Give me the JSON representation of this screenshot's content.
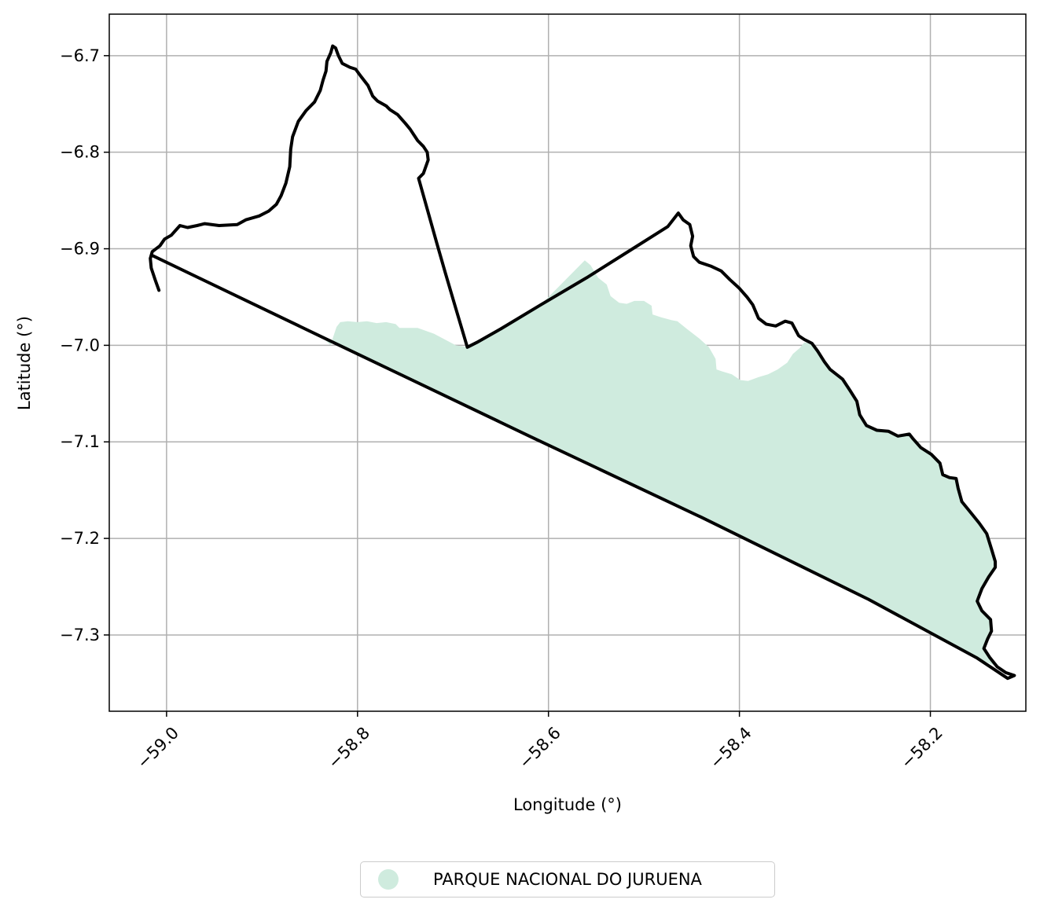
{
  "chart_data": {
    "type": "map",
    "xlabel": "Longitude (°)",
    "ylabel": "Latitude (°)",
    "xlim": [
      -59.06,
      -58.1
    ],
    "ylim": [
      -7.379,
      -6.657
    ],
    "grid": true,
    "legend_position": "bottom-center",
    "x_ticks": [
      {
        "value": -59.0,
        "label": "−59.0"
      },
      {
        "value": -58.8,
        "label": "−58.8"
      },
      {
        "value": -58.6,
        "label": "−58.6"
      },
      {
        "value": -58.4,
        "label": "−58.4"
      },
      {
        "value": -58.2,
        "label": "−58.2"
      }
    ],
    "y_ticks": [
      {
        "value": -6.7,
        "label": "−6.7"
      },
      {
        "value": -6.8,
        "label": "−6.8"
      },
      {
        "value": -6.9,
        "label": "−6.9"
      },
      {
        "value": -7.0,
        "label": "−7.0"
      },
      {
        "value": -7.1,
        "label": "−7.1"
      },
      {
        "value": -7.2,
        "label": "−7.2"
      },
      {
        "value": -7.3,
        "label": "−7.3"
      }
    ],
    "boundary": {
      "color": "#000000",
      "points": [
        [
          -59.008,
          -6.943
        ],
        [
          -59.012,
          -6.932
        ],
        [
          -59.016,
          -6.92
        ],
        [
          -59.017,
          -6.91
        ],
        [
          -59.015,
          -6.903
        ],
        [
          -59.007,
          -6.897
        ],
        [
          -59.002,
          -6.89
        ],
        [
          -58.995,
          -6.886
        ],
        [
          -58.986,
          -6.876
        ],
        [
          -58.978,
          -6.878
        ],
        [
          -58.968,
          -6.876
        ],
        [
          -58.96,
          -6.874
        ],
        [
          -58.945,
          -6.876
        ],
        [
          -58.926,
          -6.875
        ],
        [
          -58.917,
          -6.87
        ],
        [
          -58.903,
          -6.866
        ],
        [
          -58.893,
          -6.861
        ],
        [
          -58.885,
          -6.854
        ],
        [
          -58.88,
          -6.845
        ],
        [
          -58.875,
          -6.832
        ],
        [
          -58.871,
          -6.815
        ],
        [
          -58.87,
          -6.797
        ],
        [
          -58.868,
          -6.784
        ],
        [
          -58.862,
          -6.768
        ],
        [
          -58.854,
          -6.757
        ],
        [
          -58.845,
          -6.748
        ],
        [
          -58.839,
          -6.736
        ],
        [
          -58.836,
          -6.725
        ],
        [
          -58.833,
          -6.716
        ],
        [
          -58.832,
          -6.706
        ],
        [
          -58.828,
          -6.697
        ],
        [
          -58.826,
          -6.69
        ],
        [
          -58.823,
          -6.692
        ],
        [
          -58.82,
          -6.7
        ],
        [
          -58.816,
          -6.708
        ],
        [
          -58.808,
          -6.712
        ],
        [
          -58.802,
          -6.714
        ],
        [
          -58.796,
          -6.722
        ],
        [
          -58.789,
          -6.731
        ],
        [
          -58.784,
          -6.742
        ],
        [
          -58.779,
          -6.747
        ],
        [
          -58.77,
          -6.752
        ],
        [
          -58.766,
          -6.756
        ],
        [
          -58.758,
          -6.761
        ],
        [
          -58.75,
          -6.77
        ],
        [
          -58.745,
          -6.776
        ],
        [
          -58.741,
          -6.782
        ],
        [
          -58.737,
          -6.788
        ],
        [
          -58.731,
          -6.794
        ],
        [
          -58.727,
          -6.8
        ],
        [
          -58.726,
          -6.808
        ],
        [
          -58.731,
          -6.822
        ],
        [
          -58.736,
          -6.827
        ],
        [
          -58.717,
          -6.894
        ],
        [
          -58.708,
          -6.925
        ],
        [
          -58.697,
          -6.962
        ],
        [
          -58.685,
          -7.002
        ],
        [
          -58.675,
          -6.997
        ],
        [
          -58.65,
          -6.983
        ],
        [
          -58.608,
          -6.958
        ],
        [
          -58.56,
          -6.93
        ],
        [
          -58.515,
          -6.902
        ],
        [
          -58.475,
          -6.877
        ],
        [
          -58.464,
          -6.863
        ],
        [
          -58.459,
          -6.87
        ],
        [
          -58.452,
          -6.875
        ],
        [
          -58.449,
          -6.887
        ],
        [
          -58.451,
          -6.897
        ],
        [
          -58.448,
          -6.908
        ],
        [
          -58.442,
          -6.914
        ],
        [
          -58.43,
          -6.918
        ],
        [
          -58.419,
          -6.923
        ],
        [
          -58.41,
          -6.932
        ],
        [
          -58.4,
          -6.941
        ],
        [
          -58.392,
          -6.95
        ],
        [
          -58.386,
          -6.958
        ],
        [
          -58.38,
          -6.972
        ],
        [
          -58.372,
          -6.978
        ],
        [
          -58.362,
          -6.98
        ],
        [
          -58.352,
          -6.975
        ],
        [
          -58.345,
          -6.977
        ],
        [
          -58.338,
          -6.99
        ],
        [
          -58.332,
          -6.994
        ],
        [
          -58.324,
          -6.998
        ],
        [
          -58.318,
          -7.006
        ],
        [
          -58.311,
          -7.017
        ],
        [
          -58.305,
          -7.025
        ],
        [
          -58.292,
          -7.035
        ],
        [
          -58.284,
          -7.047
        ],
        [
          -58.277,
          -7.058
        ],
        [
          -58.274,
          -7.072
        ],
        [
          -58.267,
          -7.083
        ],
        [
          -58.256,
          -7.088
        ],
        [
          -58.244,
          -7.089
        ],
        [
          -58.234,
          -7.094
        ],
        [
          -58.222,
          -7.092
        ],
        [
          -58.218,
          -7.097
        ],
        [
          -58.21,
          -7.106
        ],
        [
          -58.199,
          -7.113
        ],
        [
          -58.19,
          -7.122
        ],
        [
          -58.187,
          -7.134
        ],
        [
          -58.18,
          -7.137
        ],
        [
          -58.173,
          -7.138
        ],
        [
          -58.171,
          -7.148
        ],
        [
          -58.167,
          -7.162
        ],
        [
          -58.158,
          -7.173
        ],
        [
          -58.149,
          -7.184
        ],
        [
          -58.141,
          -7.195
        ],
        [
          -58.136,
          -7.211
        ],
        [
          -58.132,
          -7.224
        ],
        [
          -58.132,
          -7.23
        ],
        [
          -58.139,
          -7.24
        ],
        [
          -58.146,
          -7.252
        ],
        [
          -58.151,
          -7.265
        ],
        [
          -58.146,
          -7.275
        ],
        [
          -58.137,
          -7.284
        ],
        [
          -58.136,
          -7.296
        ],
        [
          -58.14,
          -7.304
        ],
        [
          -58.144,
          -7.314
        ],
        [
          -58.138,
          -7.323
        ],
        [
          -58.13,
          -7.333
        ],
        [
          -58.121,
          -7.339
        ],
        [
          -58.112,
          -7.342
        ],
        [
          -58.119,
          -7.345
        ],
        [
          -58.151,
          -7.324
        ],
        [
          -58.265,
          -7.263
        ],
        [
          -58.44,
          -7.178
        ],
        [
          -58.62,
          -7.094
        ],
        [
          -58.838,
          -6.991
        ],
        [
          -59.015,
          -6.907
        ]
      ]
    },
    "protected_area": {
      "name": "PARQUE NACIONAL DO JURUENA",
      "color": "#cfebde",
      "points": [
        [
          -58.828,
          -7.0
        ],
        [
          -58.826,
          -6.993
        ],
        [
          -58.822,
          -6.981
        ],
        [
          -58.818,
          -6.976
        ],
        [
          -58.81,
          -6.975
        ],
        [
          -58.8,
          -6.976
        ],
        [
          -58.79,
          -6.975
        ],
        [
          -58.78,
          -6.977
        ],
        [
          -58.77,
          -6.976
        ],
        [
          -58.76,
          -6.978
        ],
        [
          -58.756,
          -6.982
        ],
        [
          -58.737,
          -6.982
        ],
        [
          -58.72,
          -6.988
        ],
        [
          -58.697,
          -7.0
        ],
        [
          -58.685,
          -7.002
        ],
        [
          -58.65,
          -6.983
        ],
        [
          -58.608,
          -6.958
        ],
        [
          -58.562,
          -6.912
        ],
        [
          -58.556,
          -6.917
        ],
        [
          -58.548,
          -6.93
        ],
        [
          -58.539,
          -6.937
        ],
        [
          -58.535,
          -6.949
        ],
        [
          -58.526,
          -6.956
        ],
        [
          -58.518,
          -6.957
        ],
        [
          -58.51,
          -6.954
        ],
        [
          -58.5,
          -6.954
        ],
        [
          -58.492,
          -6.959
        ],
        [
          -58.491,
          -6.968
        ],
        [
          -58.482,
          -6.971
        ],
        [
          -58.471,
          -6.974
        ],
        [
          -58.465,
          -6.975
        ],
        [
          -58.455,
          -6.983
        ],
        [
          -58.442,
          -6.993
        ],
        [
          -58.432,
          -7.002
        ],
        [
          -58.425,
          -7.014
        ],
        [
          -58.424,
          -7.025
        ],
        [
          -58.418,
          -7.027
        ],
        [
          -58.408,
          -7.03
        ],
        [
          -58.399,
          -7.036
        ],
        [
          -58.391,
          -7.037
        ],
        [
          -58.38,
          -7.033
        ],
        [
          -58.37,
          -7.03
        ],
        [
          -58.36,
          -7.025
        ],
        [
          -58.35,
          -7.018
        ],
        [
          -58.344,
          -7.009
        ],
        [
          -58.337,
          -7.003
        ],
        [
          -58.332,
          -6.997
        ],
        [
          -58.324,
          -6.998
        ],
        [
          -58.318,
          -7.006
        ],
        [
          -58.311,
          -7.017
        ],
        [
          -58.305,
          -7.025
        ],
        [
          -58.292,
          -7.035
        ],
        [
          -58.284,
          -7.047
        ],
        [
          -58.277,
          -7.058
        ],
        [
          -58.274,
          -7.072
        ],
        [
          -58.267,
          -7.083
        ],
        [
          -58.256,
          -7.088
        ],
        [
          -58.244,
          -7.089
        ],
        [
          -58.234,
          -7.094
        ],
        [
          -58.222,
          -7.092
        ],
        [
          -58.218,
          -7.097
        ],
        [
          -58.21,
          -7.106
        ],
        [
          -58.199,
          -7.113
        ],
        [
          -58.19,
          -7.122
        ],
        [
          -58.187,
          -7.134
        ],
        [
          -58.18,
          -7.137
        ],
        [
          -58.173,
          -7.138
        ],
        [
          -58.171,
          -7.148
        ],
        [
          -58.167,
          -7.162
        ],
        [
          -58.158,
          -7.173
        ],
        [
          -58.149,
          -7.184
        ],
        [
          -58.141,
          -7.195
        ],
        [
          -58.136,
          -7.211
        ],
        [
          -58.132,
          -7.224
        ],
        [
          -58.132,
          -7.23
        ],
        [
          -58.139,
          -7.24
        ],
        [
          -58.146,
          -7.252
        ],
        [
          -58.151,
          -7.265
        ],
        [
          -58.146,
          -7.275
        ],
        [
          -58.137,
          -7.284
        ],
        [
          -58.136,
          -7.296
        ],
        [
          -58.14,
          -7.304
        ],
        [
          -58.144,
          -7.314
        ],
        [
          -58.138,
          -7.323
        ],
        [
          -58.132,
          -7.332
        ],
        [
          -58.151,
          -7.324
        ],
        [
          -58.265,
          -7.263
        ],
        [
          -58.44,
          -7.178
        ],
        [
          -58.62,
          -7.094
        ],
        [
          -58.838,
          -6.991
        ]
      ]
    }
  }
}
